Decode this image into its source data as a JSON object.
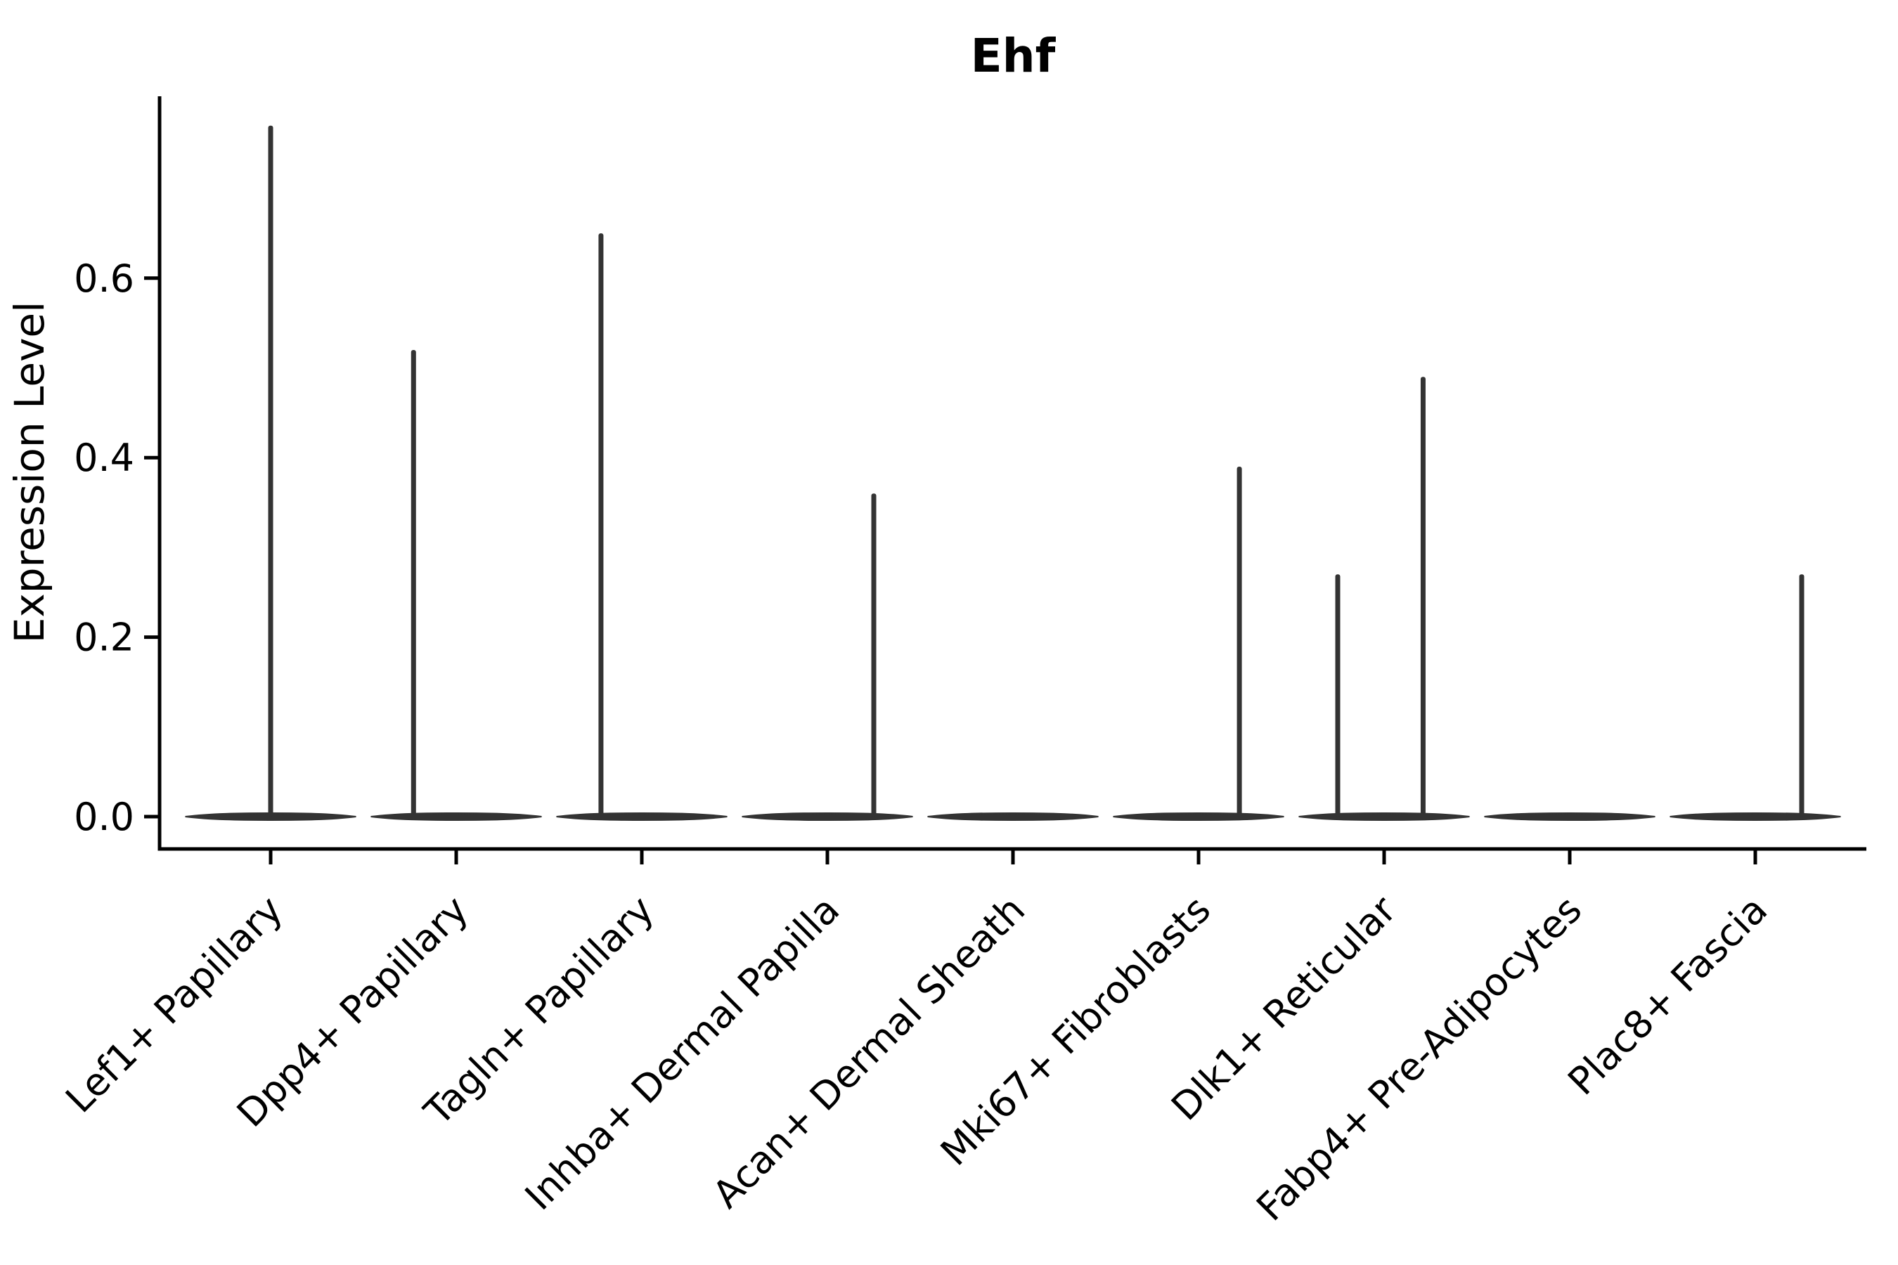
{
  "chart_data": {
    "type": "violin",
    "title": "Ehf",
    "xlabel": "",
    "ylabel": "Expression Level",
    "legend": "none",
    "grid": false,
    "background_color": "#ffffff",
    "axis_color": "#000000",
    "violin_color": "#333333",
    "x_tick_rotation_deg": 45,
    "ylim": [
      -0.036,
      0.803
    ],
    "ytick_labels": [
      "0.0",
      "0.2",
      "0.4",
      "0.6"
    ],
    "ytick_values": [
      0.0,
      0.2,
      0.4,
      0.6
    ],
    "categories": [
      "Lef1+ Papillary",
      "Dpp4+ Papillary",
      "Tagln+ Papillary",
      "Inhba+ Dermal Papilla",
      "Acan+ Dermal Sheath",
      "Mki67+ Fibroblasts",
      "Dlk1+ Reticular",
      "Fabp4+ Pre-Adipocytes",
      "Plac8+ Fascia"
    ],
    "violins": [
      {
        "category": "Lef1+ Papillary",
        "body_value": 0.0,
        "body_width_units": 0.92,
        "spikes": [
          {
            "offset_units": 0.0,
            "max_expression": 0.77
          }
        ]
      },
      {
        "category": "Dpp4+ Papillary",
        "body_value": 0.0,
        "body_width_units": 0.92,
        "spikes": [
          {
            "offset_units": -0.23,
            "max_expression": 0.52
          }
        ]
      },
      {
        "category": "Tagln+ Papillary",
        "body_value": 0.0,
        "body_width_units": 0.92,
        "spikes": [
          {
            "offset_units": -0.22,
            "max_expression": 0.65
          }
        ]
      },
      {
        "category": "Inhba+ Dermal Papilla",
        "body_value": 0.0,
        "body_width_units": 0.92,
        "spikes": [
          {
            "offset_units": 0.25,
            "max_expression": 0.36
          }
        ]
      },
      {
        "category": "Acan+ Dermal Sheath",
        "body_value": 0.0,
        "body_width_units": 0.92,
        "spikes": []
      },
      {
        "category": "Mki67+ Fibroblasts",
        "body_value": 0.0,
        "body_width_units": 0.92,
        "spikes": [
          {
            "offset_units": 0.22,
            "max_expression": 0.39
          }
        ]
      },
      {
        "category": "Dlk1+ Reticular",
        "body_value": 0.0,
        "body_width_units": 0.92,
        "spikes": [
          {
            "offset_units": -0.25,
            "max_expression": 0.27
          },
          {
            "offset_units": 0.21,
            "max_expression": 0.49
          }
        ]
      },
      {
        "category": "Fabp4+ Pre-Adipocytes",
        "body_value": 0.0,
        "body_width_units": 0.92,
        "spikes": []
      },
      {
        "category": "Plac8+ Fascia",
        "body_value": 0.0,
        "body_width_units": 0.92,
        "spikes": [
          {
            "offset_units": 0.25,
            "max_expression": 0.27
          }
        ]
      }
    ]
  }
}
